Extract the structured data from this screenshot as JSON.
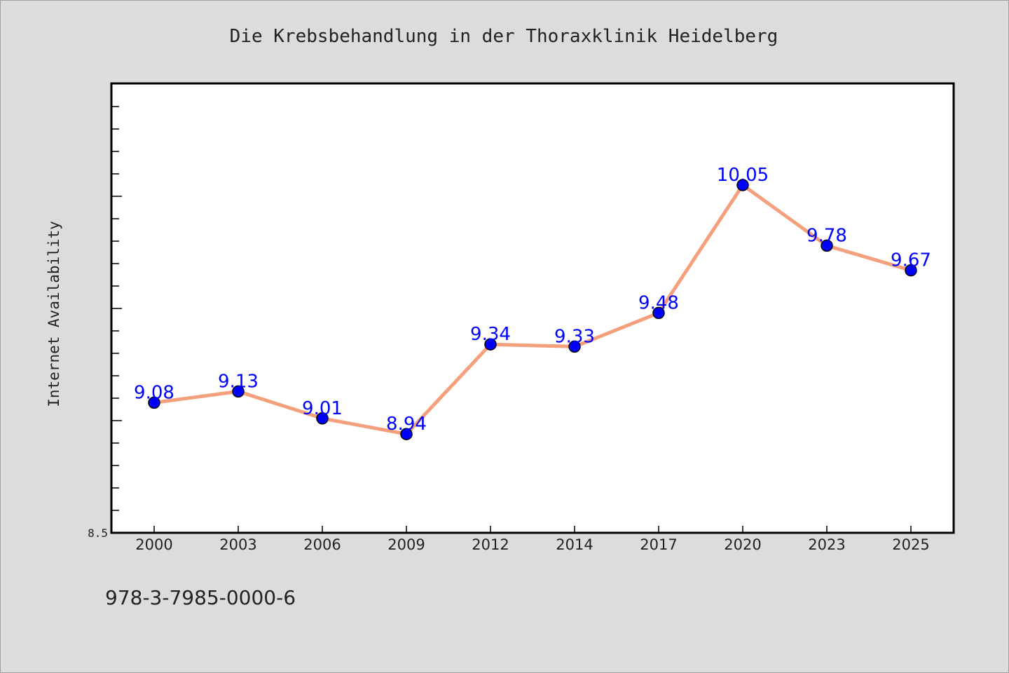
{
  "colors": {
    "background": "#dcdcdc",
    "plot_background": "#ffffff",
    "line": "#f4a07c",
    "marker": "#0000ff",
    "data_label": "#0000ff"
  },
  "footer": {
    "isbn": "978-3-7985-0000-6"
  },
  "chart_data": {
    "type": "line",
    "title": "Die Krebsbehandlung in der Thoraxklinik Heidelberg",
    "xlabel": "",
    "ylabel": "Internet Availability",
    "categories": [
      "2000",
      "2003",
      "2006",
      "2009",
      "2012",
      "2014",
      "2017",
      "2020",
      "2023",
      "2025"
    ],
    "series": [
      {
        "values": [
          9.08,
          9.13,
          9.01,
          8.94,
          9.34,
          9.33,
          9.48,
          10.05,
          9.78,
          9.67
        ]
      }
    ],
    "ylim": [
      8.5,
      10.5
    ],
    "y_tick_labels": [
      "8.5"
    ],
    "y_minor_tick_step": 0.1,
    "grid": false,
    "legend": "none",
    "data_labels": true
  }
}
